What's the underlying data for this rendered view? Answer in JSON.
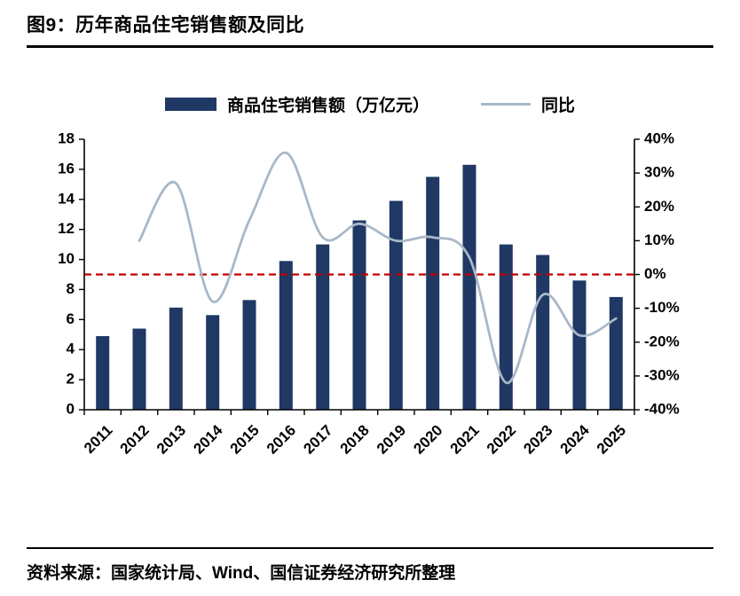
{
  "figure": {
    "title": "图9：历年商品住宅销售额及同比",
    "source": "资料来源：国家统计局、Wind、国信证券经济研究所整理"
  },
  "chart_data": {
    "type": "bar",
    "subtype": "bar+line combo, secondary right axis",
    "title": "历年商品住宅销售额及同比",
    "categories": [
      "2011",
      "2012",
      "2013",
      "2014",
      "2015",
      "2016",
      "2017",
      "2018",
      "2019",
      "2020",
      "2021",
      "2022",
      "2023",
      "2024",
      "2025"
    ],
    "series": [
      {
        "name": "商品住宅销售额（万亿元）",
        "type": "bar",
        "axis": "left",
        "color": "#1f3864",
        "values": [
          4.9,
          5.4,
          6.8,
          6.3,
          7.3,
          9.9,
          11.0,
          12.6,
          13.9,
          15.5,
          16.3,
          11.0,
          10.3,
          8.6,
          7.5
        ]
      },
      {
        "name": "同比",
        "type": "line",
        "axis": "right",
        "color": "#a9b8c8",
        "values": [
          null,
          10,
          27,
          -8,
          16,
          36,
          11,
          15,
          10,
          11,
          5,
          -32,
          -6,
          -18,
          -13
        ]
      }
    ],
    "left_axis": {
      "min": 0,
      "max": 18,
      "step": 2,
      "ticks": [
        "0",
        "2",
        "4",
        "6",
        "8",
        "10",
        "12",
        "14",
        "16",
        "18"
      ]
    },
    "right_axis": {
      "min": -40,
      "max": 40,
      "step": 10,
      "ticks": [
        "-40%",
        "-30%",
        "-20%",
        "-10%",
        "0%",
        "10%",
        "20%",
        "30%",
        "40%"
      ]
    },
    "reference_line": {
      "value": 0,
      "axis": "right",
      "color": "#c00000",
      "style": "dashed"
    },
    "legend_position": "top-center",
    "grid": false
  }
}
